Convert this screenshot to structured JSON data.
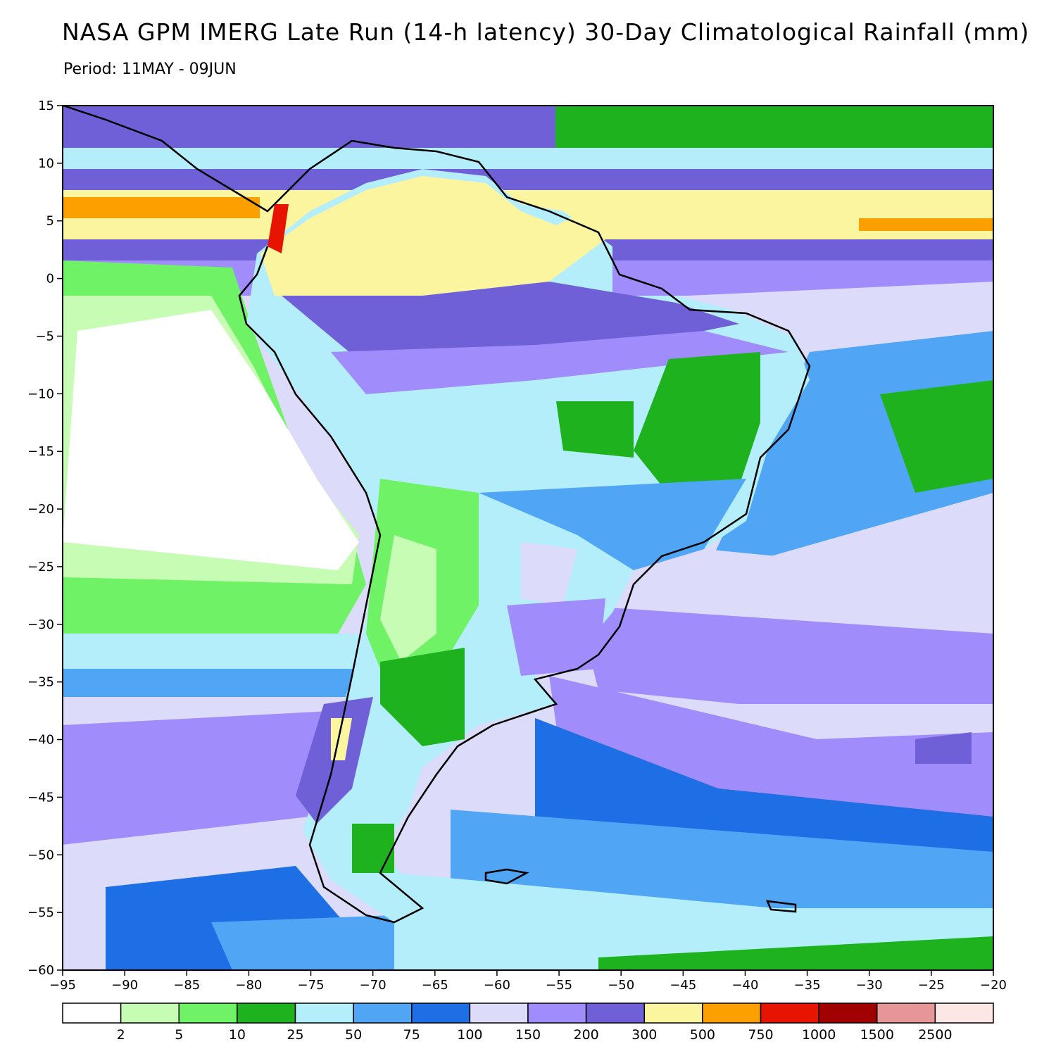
{
  "header": {
    "title": "NASA GPM IMERG Late Run (14-h latency) 30-Day Climatological Rainfall (mm)",
    "period": "Period: 11MAY - 09JUN"
  },
  "map": {
    "lon_range": [
      -95,
      -20
    ],
    "lat_range": [
      -60,
      15
    ],
    "x_ticks": [
      -95,
      -90,
      -85,
      -80,
      -75,
      -70,
      -65,
      -60,
      -55,
      -50,
      -45,
      -40,
      -35,
      -30,
      -25,
      -20
    ],
    "y_ticks": [
      15,
      10,
      5,
      0,
      -5,
      -10,
      -15,
      -20,
      -25,
      -30,
      -35,
      -40,
      -45,
      -50,
      -55,
      -60
    ],
    "x_tick_labels": [
      "−95",
      "−90",
      "−85",
      "−80",
      "−75",
      "−70",
      "−65",
      "−60",
      "−55",
      "−50",
      "−45",
      "−40",
      "−35",
      "−30",
      "−25",
      "−20"
    ],
    "y_tick_labels": [
      "15",
      "10",
      "5",
      "0",
      "−5",
      "−10",
      "−15",
      "−20",
      "−25",
      "−30",
      "−35",
      "−40",
      "−45",
      "−50",
      "−55",
      "−60"
    ],
    "region": "South America and adjacent oceans"
  },
  "colorbar": {
    "colors": [
      "#ffffff",
      "#c6fcb4",
      "#6ff266",
      "#1eb31e",
      "#b4eefa",
      "#50a5f5",
      "#1e6ee6",
      "#dcdcfa",
      "#a08cfa",
      "#7060d8",
      "#fcf5a0",
      "#fca000",
      "#e61400",
      "#a00000",
      "#e69696",
      "#fce6e6"
    ],
    "labels": [
      "2",
      "5",
      "10",
      "25",
      "50",
      "75",
      "100",
      "150",
      "200",
      "300",
      "500",
      "750",
      "1000",
      "1500",
      "2500"
    ]
  }
}
